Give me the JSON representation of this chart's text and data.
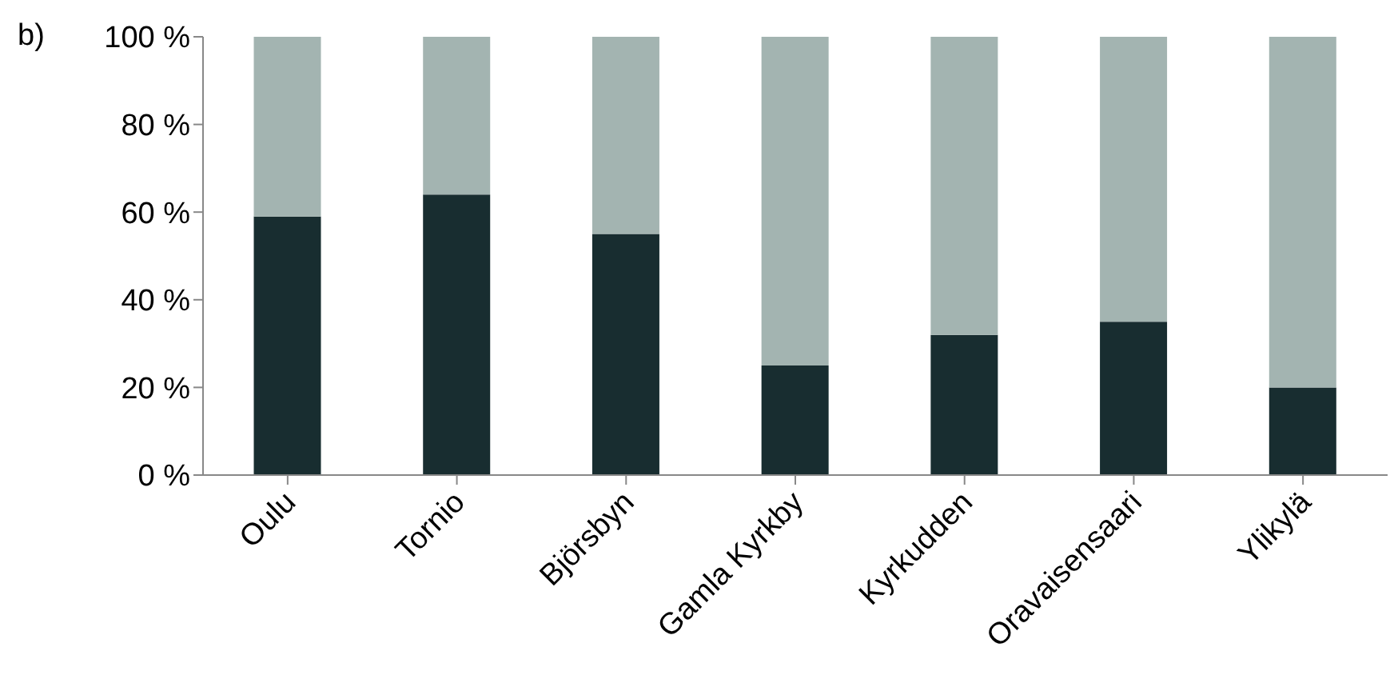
{
  "chart_data": {
    "type": "bar",
    "stacked": true,
    "categories": [
      "Oulu",
      "Tornio",
      "Björsbyn",
      "Gamla Kyrkby",
      "Kyrkudden",
      "Oravaisensaari",
      "Ylikylä"
    ],
    "series": [
      {
        "color": "#182d30",
        "values": [
          59,
          64,
          55,
          25,
          32,
          35,
          20
        ]
      },
      {
        "color": "#a3b4b1",
        "values": [
          41,
          36,
          45,
          75,
          68,
          65,
          80
        ]
      }
    ],
    "ylim": [
      0,
      100
    ],
    "yticks": [
      {
        "value": 0,
        "label": "0 %"
      },
      {
        "value": 20,
        "label": "20 %"
      },
      {
        "value": 40,
        "label": "40 %"
      },
      {
        "value": 60,
        "label": "60 %"
      },
      {
        "value": 80,
        "label": "80 %"
      },
      {
        "value": 100,
        "label": "100 %"
      }
    ],
    "grid": false,
    "legend": false,
    "annotations": [
      "b)"
    ]
  }
}
